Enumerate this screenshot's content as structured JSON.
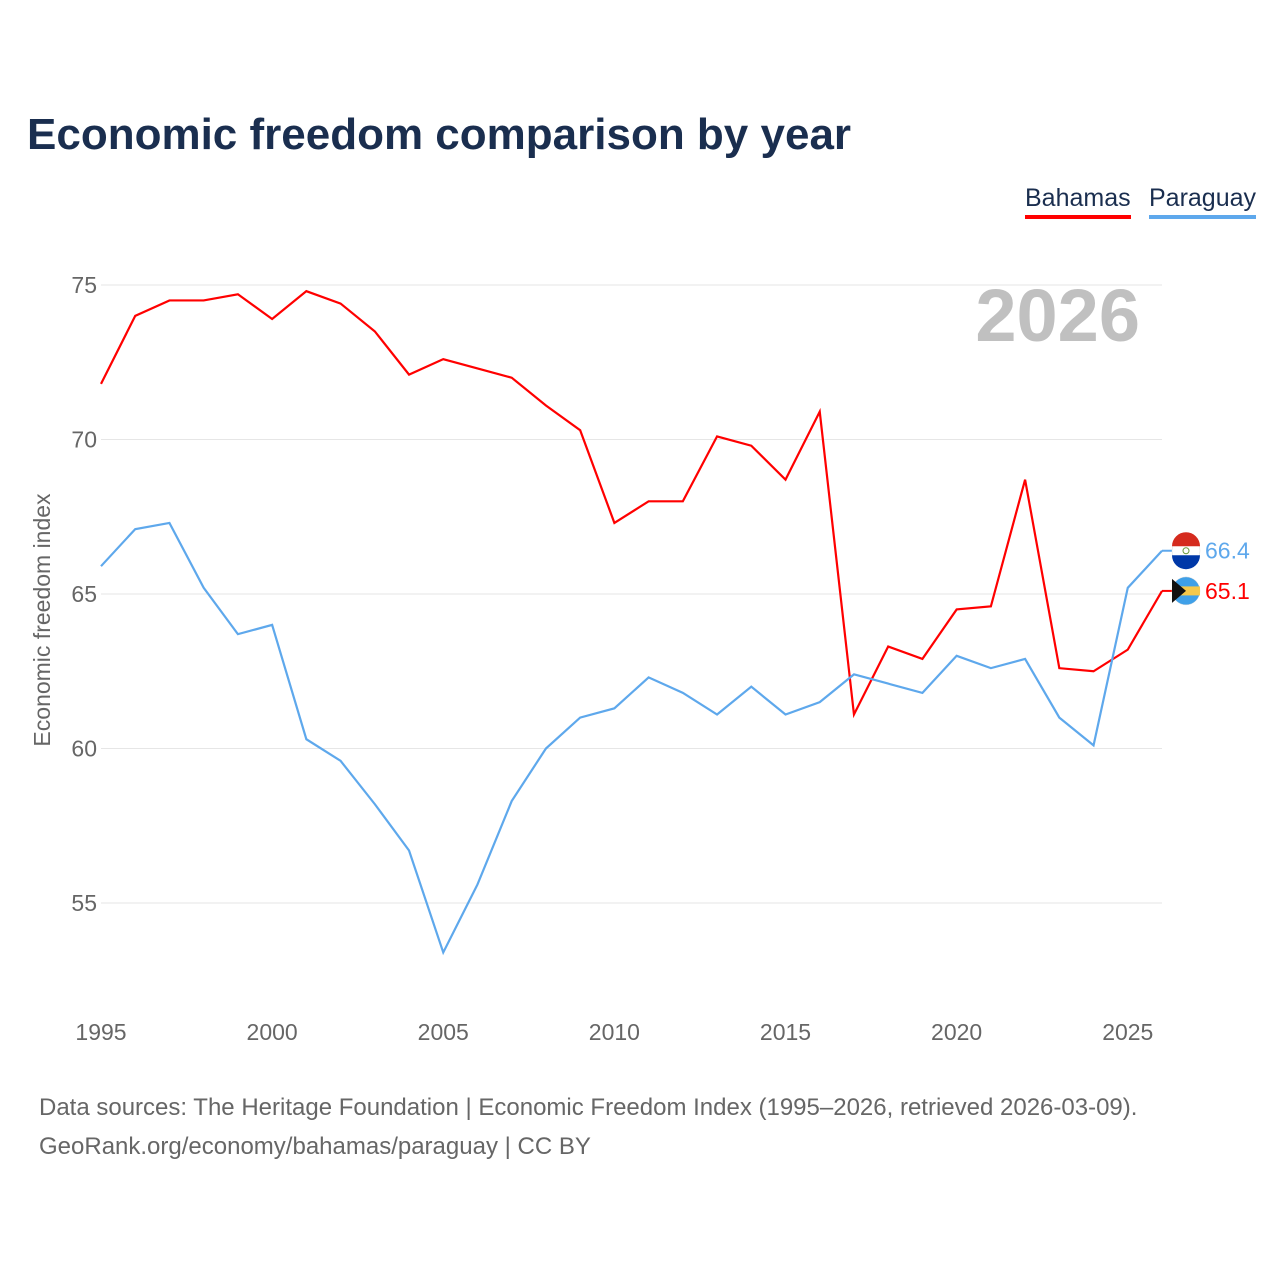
{
  "chart_data": {
    "type": "line",
    "title": "Economic freedom comparison by year",
    "ylabel": "Economic freedom index",
    "xlabel": "",
    "year_watermark": "2026",
    "x": [
      1995,
      1996,
      1997,
      1998,
      1999,
      2000,
      2001,
      2002,
      2003,
      2004,
      2005,
      2006,
      2007,
      2008,
      2009,
      2010,
      2011,
      2012,
      2013,
      2014,
      2015,
      2016,
      2017,
      2018,
      2019,
      2020,
      2021,
      2022,
      2023,
      2024,
      2025,
      2026
    ],
    "xticks": [
      "1995",
      "2000",
      "2005",
      "2010",
      "2015",
      "2020",
      "2025"
    ],
    "yticks": [
      "55",
      "60",
      "65",
      "70",
      "75"
    ],
    "ylim": [
      51.5,
      76
    ],
    "xlim": [
      1995,
      2026
    ],
    "grid": true,
    "legend_placement": "top-right",
    "series": [
      {
        "name": "Bahamas",
        "color": "#ff0000",
        "end_label": "65.1",
        "values": [
          71.8,
          74.0,
          74.5,
          74.5,
          74.7,
          73.9,
          74.8,
          74.4,
          73.5,
          72.1,
          72.6,
          72.3,
          72.0,
          71.1,
          70.3,
          67.3,
          68.0,
          68.0,
          70.1,
          69.8,
          68.7,
          70.9,
          61.1,
          63.3,
          62.9,
          64.5,
          64.6,
          68.7,
          62.6,
          62.5,
          63.2,
          65.1
        ]
      },
      {
        "name": "Paraguay",
        "color": "#5ea8ec",
        "end_label": "66.4",
        "values": [
          65.9,
          67.1,
          67.3,
          65.2,
          63.7,
          64.0,
          60.3,
          59.6,
          58.2,
          56.7,
          53.4,
          55.6,
          58.3,
          60.0,
          61.0,
          61.3,
          62.3,
          61.8,
          61.1,
          62.0,
          61.1,
          61.5,
          62.4,
          62.1,
          61.8,
          63.0,
          62.6,
          62.9,
          61.0,
          60.1,
          65.2,
          66.4
        ]
      }
    ]
  },
  "footer": {
    "line1": "Data sources: The Heritage Foundation | Economic Freedom Index (1995–2026, retrieved 2026-03-09).",
    "line2": "GeoRank.org/economy/bahamas/paraguay | CC BY"
  }
}
